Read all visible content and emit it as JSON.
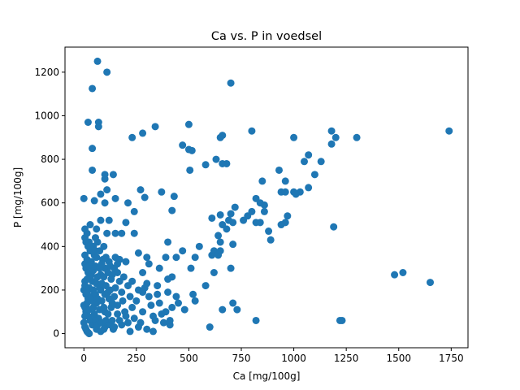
{
  "chart_data": {
    "type": "scatter",
    "title": "Ca vs. P in voedsel",
    "xlabel": "Ca [mg/100g]",
    "ylabel": "P [mg/100g]",
    "xlim": [
      -90,
      1830
    ],
    "ylim": [
      -65,
      1315
    ],
    "xticks": [
      0,
      250,
      500,
      750,
      1000,
      1250,
      1500,
      1750
    ],
    "yticks": [
      0,
      200,
      400,
      600,
      800,
      1000,
      1200
    ],
    "grid": false,
    "legend": "none",
    "marker_color": "#1f77b4",
    "series": [
      {
        "points": [
          [
            65,
            1250
          ],
          [
            110,
            1200
          ],
          [
            40,
            1125
          ],
          [
            700,
            1150
          ],
          [
            20,
            970
          ],
          [
            70,
            970
          ],
          [
            70,
            950
          ],
          [
            340,
            950
          ],
          [
            500,
            960
          ],
          [
            280,
            920
          ],
          [
            230,
            900
          ],
          [
            650,
            900
          ],
          [
            660,
            910
          ],
          [
            1000,
            900
          ],
          [
            1180,
            930
          ],
          [
            1200,
            900
          ],
          [
            1300,
            900
          ],
          [
            1740,
            930
          ],
          [
            40,
            850
          ],
          [
            470,
            865
          ],
          [
            500,
            845
          ],
          [
            515,
            840
          ],
          [
            800,
            930
          ],
          [
            630,
            800
          ],
          [
            1050,
            790
          ],
          [
            1070,
            820
          ],
          [
            1130,
            790
          ],
          [
            1180,
            870
          ],
          [
            40,
            750
          ],
          [
            100,
            730
          ],
          [
            140,
            730
          ],
          [
            100,
            710
          ],
          [
            580,
            775
          ],
          [
            660,
            780
          ],
          [
            680,
            780
          ],
          [
            505,
            750
          ],
          [
            1100,
            730
          ],
          [
            270,
            660
          ],
          [
            370,
            650
          ],
          [
            290,
            625
          ],
          [
            1000,
            650
          ],
          [
            1030,
            650
          ],
          [
            1070,
            670
          ],
          [
            940,
            650
          ],
          [
            960,
            700
          ],
          [
            930,
            750
          ],
          [
            850,
            700
          ],
          [
            820,
            620
          ],
          [
            0,
            620
          ],
          [
            50,
            610
          ],
          [
            80,
            640
          ],
          [
            100,
            600
          ],
          [
            150,
            620
          ],
          [
            210,
            600
          ],
          [
            110,
            660
          ],
          [
            430,
            630
          ],
          [
            960,
            650
          ],
          [
            1010,
            640
          ],
          [
            80,
            520
          ],
          [
            120,
            520
          ],
          [
            200,
            510
          ],
          [
            240,
            560
          ],
          [
            420,
            565
          ],
          [
            610,
            530
          ],
          [
            650,
            545
          ],
          [
            700,
            550
          ],
          [
            720,
            580
          ],
          [
            780,
            540
          ],
          [
            800,
            560
          ],
          [
            840,
            600
          ],
          [
            860,
            590
          ],
          [
            860,
            560
          ],
          [
            710,
            510
          ],
          [
            760,
            520
          ],
          [
            820,
            510
          ],
          [
            840,
            510
          ],
          [
            880,
            470
          ],
          [
            940,
            500
          ],
          [
            960,
            510
          ],
          [
            970,
            540
          ],
          [
            1190,
            490
          ],
          [
            660,
            500
          ],
          [
            680,
            480
          ],
          [
            690,
            520
          ],
          [
            30,
            500
          ],
          [
            60,
            480
          ],
          [
            110,
            460
          ],
          [
            150,
            460
          ],
          [
            180,
            460
          ],
          [
            240,
            460
          ],
          [
            400,
            420
          ],
          [
            640,
            450
          ],
          [
            710,
            410
          ],
          [
            890,
            430
          ],
          [
            650,
            420
          ],
          [
            10,
            420
          ],
          [
            20,
            400
          ],
          [
            30,
            380
          ],
          [
            50,
            360
          ],
          [
            60,
            350
          ],
          [
            90,
            340
          ],
          [
            120,
            330
          ],
          [
            150,
            350
          ],
          [
            170,
            340
          ],
          [
            200,
            330
          ],
          [
            260,
            370
          ],
          [
            300,
            350
          ],
          [
            310,
            320
          ],
          [
            360,
            300
          ],
          [
            390,
            350
          ],
          [
            440,
            350
          ],
          [
            470,
            380
          ],
          [
            510,
            300
          ],
          [
            530,
            350
          ],
          [
            550,
            400
          ],
          [
            610,
            360
          ],
          [
            620,
            380
          ],
          [
            640,
            360
          ],
          [
            650,
            380
          ],
          [
            700,
            300
          ],
          [
            10,
            300
          ],
          [
            20,
            280
          ],
          [
            30,
            260
          ],
          [
            40,
            240
          ],
          [
            60,
            230
          ],
          [
            80,
            270
          ],
          [
            100,
            300
          ],
          [
            130,
            250
          ],
          [
            160,
            280
          ],
          [
            190,
            260
          ],
          [
            230,
            240
          ],
          [
            280,
            280
          ],
          [
            300,
            230
          ],
          [
            350,
            220
          ],
          [
            400,
            250
          ],
          [
            420,
            260
          ],
          [
            520,
            180
          ],
          [
            580,
            220
          ],
          [
            620,
            280
          ],
          [
            0,
            200
          ],
          [
            10,
            180
          ],
          [
            20,
            160
          ],
          [
            40,
            150
          ],
          [
            60,
            140
          ],
          [
            80,
            200
          ],
          [
            100,
            180
          ],
          [
            120,
            160
          ],
          [
            150,
            210
          ],
          [
            180,
            190
          ],
          [
            220,
            170
          ],
          [
            260,
            200
          ],
          [
            280,
            190
          ],
          [
            310,
            170
          ],
          [
            350,
            180
          ],
          [
            400,
            190
          ],
          [
            440,
            170
          ],
          [
            530,
            150
          ],
          [
            1480,
            270
          ],
          [
            1520,
            280
          ],
          [
            1650,
            235
          ],
          [
            0,
            130
          ],
          [
            10,
            100
          ],
          [
            20,
            80
          ],
          [
            30,
            60
          ],
          [
            50,
            90
          ],
          [
            70,
            70
          ],
          [
            100,
            100
          ],
          [
            130,
            120
          ],
          [
            160,
            90
          ],
          [
            200,
            80
          ],
          [
            240,
            70
          ],
          [
            280,
            100
          ],
          [
            330,
            80
          ],
          [
            370,
            90
          ],
          [
            420,
            120
          ],
          [
            660,
            110
          ],
          [
            710,
            140
          ],
          [
            730,
            110
          ],
          [
            0,
            50
          ],
          [
            5,
            30
          ],
          [
            10,
            20
          ],
          [
            15,
            10
          ],
          [
            20,
            5
          ],
          [
            25,
            0
          ],
          [
            40,
            40
          ],
          [
            60,
            20
          ],
          [
            80,
            10
          ],
          [
            100,
            30
          ],
          [
            140,
            20
          ],
          [
            180,
            40
          ],
          [
            220,
            10
          ],
          [
            260,
            30
          ],
          [
            300,
            20
          ],
          [
            330,
            10
          ],
          [
            380,
            50
          ],
          [
            410,
            40
          ],
          [
            600,
            30
          ],
          [
            820,
            60
          ],
          [
            1220,
            60
          ],
          [
            1230,
            60
          ],
          [
            5,
            480
          ],
          [
            5,
            440
          ],
          [
            5,
            360
          ],
          [
            5,
            320
          ],
          [
            5,
            240
          ],
          [
            5,
            220
          ],
          [
            5,
            120
          ],
          [
            5,
            80
          ],
          [
            15,
            460
          ],
          [
            15,
            340
          ],
          [
            15,
            250
          ],
          [
            15,
            190
          ],
          [
            15,
            140
          ],
          [
            25,
            420
          ],
          [
            25,
            310
          ],
          [
            25,
            210
          ],
          [
            25,
            110
          ],
          [
            35,
            330
          ],
          [
            35,
            270
          ],
          [
            35,
            170
          ],
          [
            35,
            70
          ],
          [
            45,
            400
          ],
          [
            45,
            290
          ],
          [
            45,
            200
          ],
          [
            45,
            120
          ],
          [
            55,
            440
          ],
          [
            55,
            380
          ],
          [
            55,
            310
          ],
          [
            55,
            180
          ],
          [
            55,
            60
          ],
          [
            65,
            420
          ],
          [
            65,
            260
          ],
          [
            65,
            160
          ],
          [
            65,
            40
          ],
          [
            75,
            380
          ],
          [
            75,
            300
          ],
          [
            75,
            210
          ],
          [
            75,
            110
          ],
          [
            85,
            320
          ],
          [
            85,
            230
          ],
          [
            85,
            150
          ],
          [
            85,
            50
          ],
          [
            95,
            400
          ],
          [
            95,
            260
          ],
          [
            95,
            120
          ],
          [
            95,
            20
          ],
          [
            105,
            350
          ],
          [
            105,
            220
          ],
          [
            105,
            60
          ],
          [
            115,
            280
          ],
          [
            115,
            190
          ],
          [
            115,
            90
          ],
          [
            125,
            310
          ],
          [
            125,
            200
          ],
          [
            125,
            40
          ],
          [
            135,
            270
          ],
          [
            135,
            140
          ],
          [
            135,
            60
          ],
          [
            145,
            300
          ],
          [
            145,
            170
          ],
          [
            145,
            30
          ],
          [
            160,
            320
          ],
          [
            160,
            130
          ],
          [
            170,
            240
          ],
          [
            170,
            60
          ],
          [
            185,
            150
          ],
          [
            195,
            100
          ],
          [
            210,
            220
          ],
          [
            210,
            50
          ],
          [
            230,
            120
          ],
          [
            250,
            150
          ],
          [
            270,
            50
          ],
          [
            290,
            210
          ],
          [
            320,
            130
          ],
          [
            340,
            60
          ],
          [
            360,
            140
          ],
          [
            390,
            100
          ],
          [
            410,
            60
          ],
          [
            450,
            140
          ],
          [
            480,
            110
          ]
        ]
      }
    ]
  }
}
